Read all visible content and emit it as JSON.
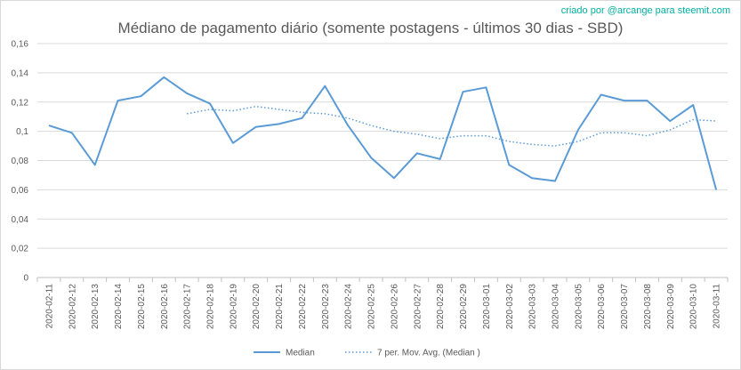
{
  "credit": {
    "text": "criado por @arcange para steemit.com",
    "color": "#00b0a0"
  },
  "chart_data": {
    "type": "line",
    "title": "Médiano de pagamento diário (somente postagens - últimos 30 dias - SBD)",
    "xlabel": "",
    "ylabel": "",
    "ylim": [
      0,
      0.16
    ],
    "yticks": [
      "0",
      "0,02",
      "0,04",
      "0,06",
      "0,08",
      "0,1",
      "0,12",
      "0,14",
      "0,16"
    ],
    "grid": true,
    "legend": "bottom",
    "categories": [
      "2020-02-11",
      "2020-02-12",
      "2020-02-13",
      "2020-02-14",
      "2020-02-15",
      "2020-02-16",
      "2020-02-17",
      "2020-02-18",
      "2020-02-19",
      "2020-02-20",
      "2020-02-21",
      "2020-02-22",
      "2020-02-23",
      "2020-02-24",
      "2020-02-25",
      "2020-02-26",
      "2020-02-27",
      "2020-02-28",
      "2020-02-29",
      "2020-03-01",
      "2020-03-02",
      "2020-03-03",
      "2020-03-04",
      "2020-03-05",
      "2020-03-06",
      "2020-03-07",
      "2020-03-08",
      "2020-03-09",
      "2020-03-10",
      "2020-03-11"
    ],
    "series": [
      {
        "name": "Median",
        "color": "#5b9bd5",
        "style": "solid",
        "values": [
          0.104,
          0.099,
          0.077,
          0.121,
          0.124,
          0.137,
          0.126,
          0.119,
          0.092,
          0.103,
          0.105,
          0.109,
          0.131,
          0.104,
          0.082,
          0.068,
          0.085,
          0.081,
          0.127,
          0.13,
          0.077,
          0.068,
          0.066,
          0.101,
          0.125,
          0.121,
          0.121,
          0.107,
          0.118,
          0.06
        ]
      },
      {
        "name": "7 per. Mov. Avg. (Median )",
        "color": "#5b9bd5",
        "style": "dotted",
        "values": [
          null,
          null,
          null,
          null,
          null,
          null,
          0.112,
          0.115,
          0.114,
          0.117,
          0.115,
          0.113,
          0.112,
          0.109,
          0.104,
          0.1,
          0.098,
          0.095,
          0.097,
          0.097,
          0.093,
          0.091,
          0.09,
          0.093,
          0.099,
          0.099,
          0.097,
          0.101,
          0.108,
          0.107
        ]
      }
    ]
  }
}
